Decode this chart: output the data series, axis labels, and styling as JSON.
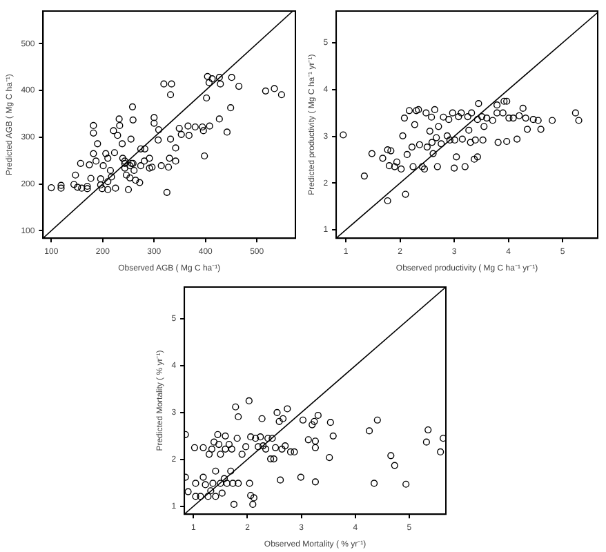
{
  "chart_data": [
    {
      "type": "scatter",
      "xlabel": "Observed AGB ( Mg C ha⁻¹)",
      "ylabel": "Predicted AGB ( Mg C ha⁻¹)",
      "xlim": [
        84,
        575
      ],
      "ylim": [
        84,
        570
      ],
      "xticks": [
        100,
        200,
        300,
        400,
        500
      ],
      "yticks": [
        100,
        200,
        300,
        400,
        500
      ],
      "series": [
        {
          "type": "scatter",
          "marker": "circle",
          "color": "#000000",
          "x": [
            100,
            119,
            119,
            144,
            147,
            151,
            157,
            159,
            170,
            170,
            174,
            177,
            182,
            182,
            182,
            190,
            187,
            196,
            196,
            199,
            201,
            206,
            210,
            210,
            210,
            215,
            217,
            221,
            223,
            225,
            229,
            232,
            233,
            238,
            239,
            243,
            243,
            246,
            250,
            253,
            255,
            258,
            259,
            259,
            261,
            264,
            272,
            274,
            281,
            282,
            291,
            296,
            300,
            300,
            308,
            309,
            314,
            319,
            325,
            328,
            330,
            334,
            332,
            332,
            342,
            342,
            349,
            353,
            366,
            368,
            380,
            394,
            396,
            398,
            402,
            404,
            407,
            408,
            413,
            427,
            427,
            429,
            442,
            449,
            451,
            465,
            517,
            534,
            548,
            253,
            256,
            243,
            274,
            291
          ],
          "values": [
            192,
            197,
            191,
            199,
            219,
            193,
            244,
            191,
            190,
            195,
            241,
            212,
            309,
            325,
            265,
            286,
            249,
            211,
            198,
            190,
            239,
            265,
            255,
            188,
            205,
            229,
            215,
            314,
            267,
            191,
            304,
            339,
            325,
            286,
            255,
            234,
            249,
            219,
            188,
            213,
            296,
            365,
            337,
            244,
            229,
            208,
            203,
            239,
            249,
            275,
            255,
            236,
            342,
            330,
            294,
            316,
            239,
            414,
            182,
            236,
            255,
            414,
            391,
            296,
            277,
            249,
            319,
            306,
            324,
            304,
            322,
            322,
            314,
            260,
            384,
            430,
            417,
            324,
            425,
            339,
            428,
            414,
            311,
            363,
            428,
            409,
            399,
            404,
            391,
            239,
            244,
            244,
            275,
            234
          ]
        },
        {
          "type": "line",
          "color": "#000000",
          "x": [
            84,
            570
          ],
          "values": [
            84,
            570
          ]
        }
      ]
    },
    {
      "type": "scatter",
      "xlabel": "Observed productivity ( Mg C ha⁻¹ yr⁻¹)",
      "ylabel": "Predicted productivity ( Mg C ha⁻¹ yr⁻¹)",
      "xlim": [
        0.82,
        5.65
      ],
      "ylim": [
        0.82,
        5.68
      ],
      "xticks": [
        1,
        2,
        3,
        4,
        5
      ],
      "yticks": [
        1,
        2,
        3,
        4,
        5
      ],
      "series": [
        {
          "type": "scatter",
          "marker": "circle",
          "color": "#000000",
          "x": [
            0.95,
            1.34,
            1.48,
            1.68,
            1.77,
            1.83,
            1.77,
            1.8,
            1.9,
            1.94,
            2.02,
            2.05,
            2.08,
            2.1,
            2.13,
            2.17,
            2.22,
            2.24,
            2.27,
            2.3,
            2.34,
            2.36,
            2.41,
            2.45,
            2.48,
            2.5,
            2.55,
            2.58,
            2.59,
            2.61,
            2.64,
            2.67,
            2.69,
            2.71,
            2.76,
            2.8,
            2.87,
            2.9,
            2.92,
            2.97,
            3.0,
            3.01,
            3.04,
            3.08,
            3.13,
            3.15,
            3.2,
            3.25,
            3.27,
            3.3,
            3.32,
            3.37,
            3.39,
            3.43,
            3.43,
            3.45,
            3.51,
            3.53,
            3.55,
            3.6,
            3.71,
            3.79,
            3.79,
            3.81,
            3.9,
            3.92,
            3.97,
            3.97,
            4.01,
            4.09,
            4.16,
            4.2,
            4.27,
            4.32,
            4.35,
            4.46,
            4.55,
            4.6,
            4.81,
            5.24,
            5.3
          ],
          "values": [
            3.03,
            2.15,
            2.63,
            2.53,
            2.71,
            2.69,
            1.62,
            2.37,
            2.35,
            2.45,
            2.3,
            3.01,
            3.39,
            1.76,
            2.61,
            3.55,
            2.77,
            2.35,
            3.25,
            3.55,
            3.57,
            2.82,
            2.35,
            2.3,
            3.5,
            2.77,
            3.11,
            3.41,
            2.87,
            2.63,
            3.57,
            2.97,
            2.35,
            3.21,
            2.84,
            3.41,
            3.01,
            3.36,
            2.92,
            3.5,
            2.32,
            2.92,
            2.56,
            3.42,
            3.5,
            2.94,
            2.35,
            3.42,
            3.13,
            2.87,
            3.5,
            2.51,
            2.92,
            3.36,
            2.56,
            3.7,
            3.42,
            2.92,
            3.21,
            3.39,
            3.34,
            3.5,
            3.67,
            2.87,
            3.5,
            3.75,
            3.75,
            2.89,
            3.39,
            3.39,
            2.94,
            3.44,
            3.6,
            3.39,
            3.15,
            3.36,
            3.34,
            3.15,
            3.34,
            3.5,
            3.34
          ]
        },
        {
          "type": "line",
          "color": "#000000",
          "x": [
            0.82,
            5.65
          ],
          "values": [
            0.82,
            5.65
          ]
        }
      ]
    },
    {
      "type": "scatter",
      "xlabel": "Observed Mortality ( % yr⁻¹)",
      "ylabel": "Predicted Mortality ( % yr⁻¹)",
      "xlim": [
        0.83,
        5.68
      ],
      "ylim": [
        0.83,
        5.68
      ],
      "xticks": [
        1,
        2,
        3,
        4,
        5
      ],
      "yticks": [
        1,
        2,
        3,
        4,
        5
      ],
      "series": [
        {
          "type": "scatter",
          "marker": "circle",
          "color": "#000000",
          "x": [
            0.85,
            0.85,
            0.9,
            1.02,
            1.04,
            1.04,
            1.13,
            1.18,
            1.18,
            1.22,
            1.27,
            1.29,
            1.32,
            1.34,
            1.36,
            1.38,
            1.41,
            1.41,
            1.45,
            1.47,
            1.5,
            1.5,
            1.53,
            1.57,
            1.59,
            1.59,
            1.62,
            1.66,
            1.69,
            1.71,
            1.73,
            1.75,
            1.78,
            1.81,
            1.83,
            1.83,
            1.9,
            1.97,
            2.03,
            2.04,
            2.06,
            2.06,
            2.1,
            2.12,
            2.15,
            2.2,
            2.24,
            2.27,
            2.29,
            2.34,
            2.38,
            2.43,
            2.46,
            2.49,
            2.52,
            2.55,
            2.59,
            2.61,
            2.64,
            2.66,
            2.7,
            2.74,
            2.8,
            2.87,
            2.99,
            3.03,
            3.13,
            3.2,
            3.24,
            3.26,
            3.26,
            3.26,
            3.31,
            3.52,
            3.54,
            3.59,
            4.26,
            4.35,
            4.41,
            4.66,
            4.73,
            4.94,
            5.32,
            5.35,
            5.58,
            5.63
          ],
          "values": [
            2.53,
            1.62,
            1.31,
            2.25,
            1.49,
            1.21,
            1.21,
            2.25,
            1.62,
            1.46,
            1.21,
            2.11,
            1.33,
            2.22,
            1.49,
            2.37,
            1.75,
            1.21,
            2.53,
            2.32,
            1.49,
            2.11,
            1.28,
            1.59,
            2.5,
            2.22,
            1.49,
            2.32,
            1.75,
            2.22,
            1.49,
            1.04,
            3.12,
            2.45,
            2.91,
            1.49,
            2.11,
            2.27,
            3.25,
            1.49,
            2.48,
            1.23,
            1.04,
            1.18,
            2.45,
            2.27,
            2.48,
            2.87,
            2.29,
            2.22,
            2.45,
            2.01,
            2.45,
            2.01,
            2.25,
            3.0,
            2.81,
            1.56,
            2.22,
            2.87,
            2.29,
            3.08,
            2.16,
            2.16,
            1.62,
            2.84,
            2.42,
            2.74,
            2.81,
            2.25,
            2.39,
            1.52,
            2.94,
            2.04,
            2.79,
            2.5,
            2.61,
            1.49,
            2.84,
            2.08,
            1.87,
            1.47,
            2.37,
            2.63,
            2.16,
            2.45
          ]
        },
        {
          "type": "line",
          "color": "#000000",
          "x": [
            0.83,
            5.68
          ],
          "values": [
            0.83,
            5.68
          ]
        }
      ]
    }
  ]
}
